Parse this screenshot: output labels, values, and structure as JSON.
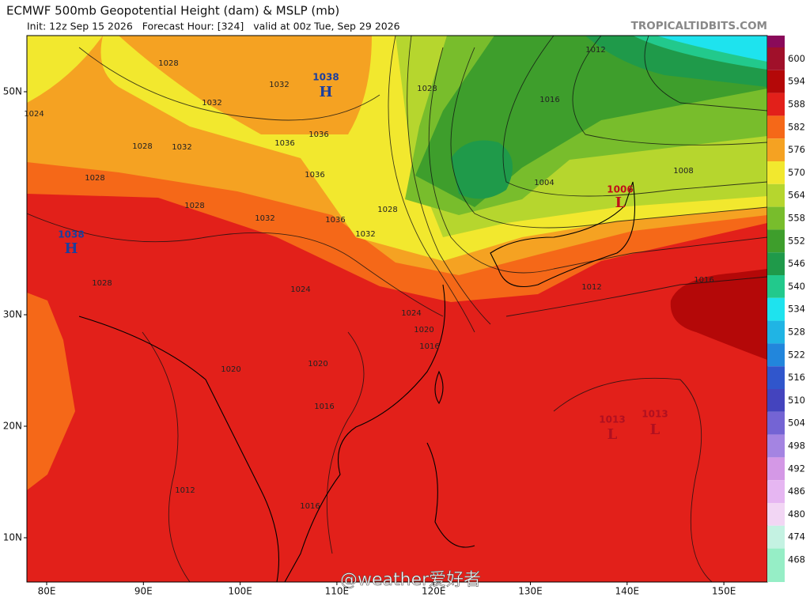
{
  "header": {
    "title": "ECMWF 500mb Geopotential Height (dam) & MSLP (mb)",
    "subtitle": "Init: 12z Sep 15 2026   Forecast Hour: [324]   valid at 00z Tue, Sep 29 2026",
    "credit": "TROPICALTIDBITS.COM"
  },
  "map": {
    "lat_labels": [
      "50N",
      "30N",
      "20N",
      "10N"
    ],
    "lon_labels": [
      "80E",
      "90E",
      "100E",
      "110E",
      "120E",
      "130E",
      "140E",
      "150E"
    ],
    "pressure_centers": [
      {
        "symbol": "H",
        "label": "1038",
        "color": "#1c3f9e"
      },
      {
        "symbol": "H",
        "label": "1038",
        "color": "#1c3f9e"
      },
      {
        "symbol": "L",
        "label": "1006",
        "color": "#c0101a"
      },
      {
        "symbol": "L",
        "label": "1013",
        "color": "#b01020"
      },
      {
        "symbol": "L",
        "label": "1013",
        "color": "#b01020"
      }
    ],
    "isobar_labels": [
      "1028",
      "1032",
      "1032",
      "1024",
      "1028",
      "1032",
      "1036",
      "1036",
      "1036",
      "1028",
      "1028",
      "1032",
      "1036",
      "1032",
      "1028",
      "1028",
      "1016",
      "1012",
      "1008",
      "1004",
      "1024",
      "1020",
      "1016",
      "1020",
      "1020",
      "1016",
      "1012",
      "1016",
      "1012",
      "1016",
      "1024",
      "1028"
    ]
  },
  "colorbar": {
    "levels": [
      600,
      594,
      588,
      582,
      576,
      570,
      564,
      558,
      552,
      546,
      540,
      534,
      528,
      522,
      516,
      510,
      504,
      498,
      492,
      486,
      480,
      474,
      468
    ],
    "colors": [
      "#a0102a",
      "#b40808",
      "#e2201a",
      "#f56818",
      "#f5a222",
      "#f2e82e",
      "#b6d62e",
      "#78bd2c",
      "#3e9e2c",
      "#1f9a4a",
      "#22c98c",
      "#1ee3ee",
      "#20b4e4",
      "#2286dc",
      "#3056cc",
      "#4444be",
      "#7464d4",
      "#a484e2",
      "#d498e6",
      "#e6b6f2",
      "#f2d6f4",
      "#c4f2e2",
      "#96eec6"
    ]
  },
  "watermark": "@weather爱好者"
}
